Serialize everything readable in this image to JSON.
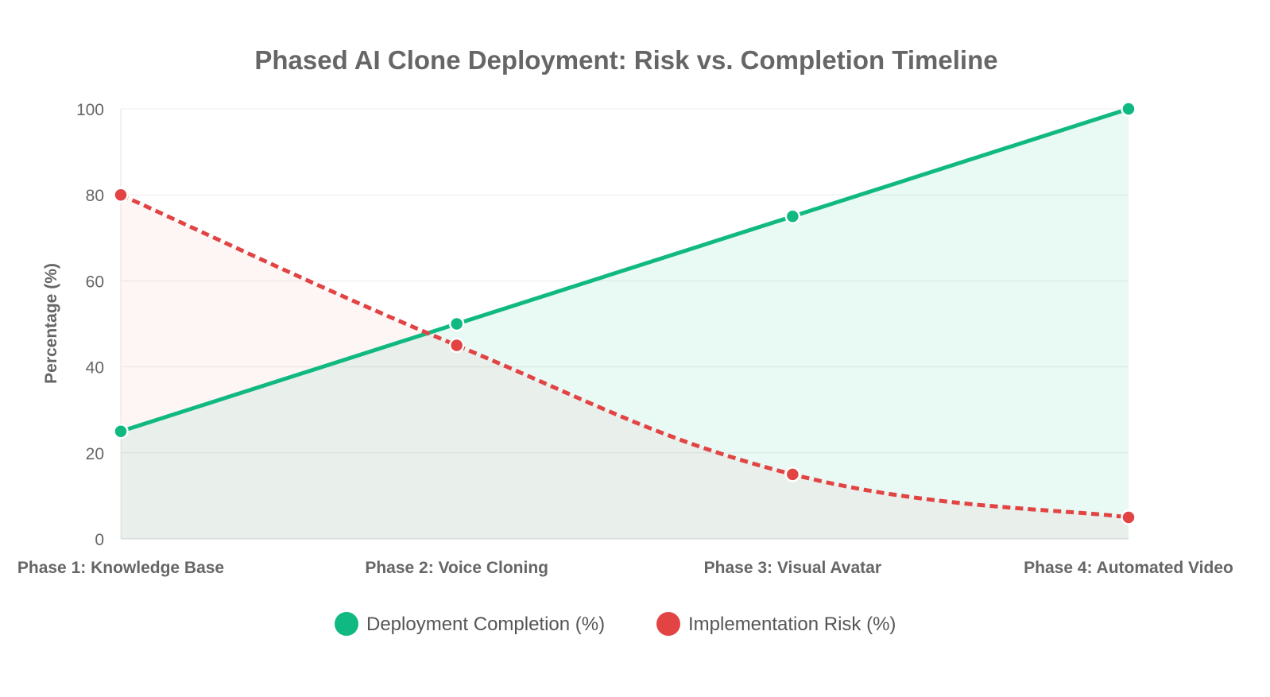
{
  "chart_data": {
    "type": "line",
    "title": "Phased AI Clone Deployment: Risk vs. Completion Timeline",
    "xlabel": "",
    "ylabel": "Percentage (%)",
    "categories": [
      "Phase 1: Knowledge Base",
      "Phase 2: Voice Cloning",
      "Phase 3: Visual Avatar",
      "Phase 4: Automated Video"
    ],
    "ylim": [
      0,
      100
    ],
    "yticks": [
      0,
      20,
      40,
      60,
      80,
      100
    ],
    "grid": true,
    "legend_position": "bottom",
    "series": [
      {
        "name": "Deployment Completion (%)",
        "values": [
          25,
          50,
          75,
          100
        ],
        "color": "#10b981",
        "fill": "rgba(16,185,129,0.09)",
        "line_style": "solid"
      },
      {
        "name": "Implementation Risk (%)",
        "values": [
          80,
          45,
          15,
          5
        ],
        "color": "#e24444",
        "fill": "rgba(239,68,68,0.05)",
        "line_style": "dashed"
      }
    ]
  }
}
